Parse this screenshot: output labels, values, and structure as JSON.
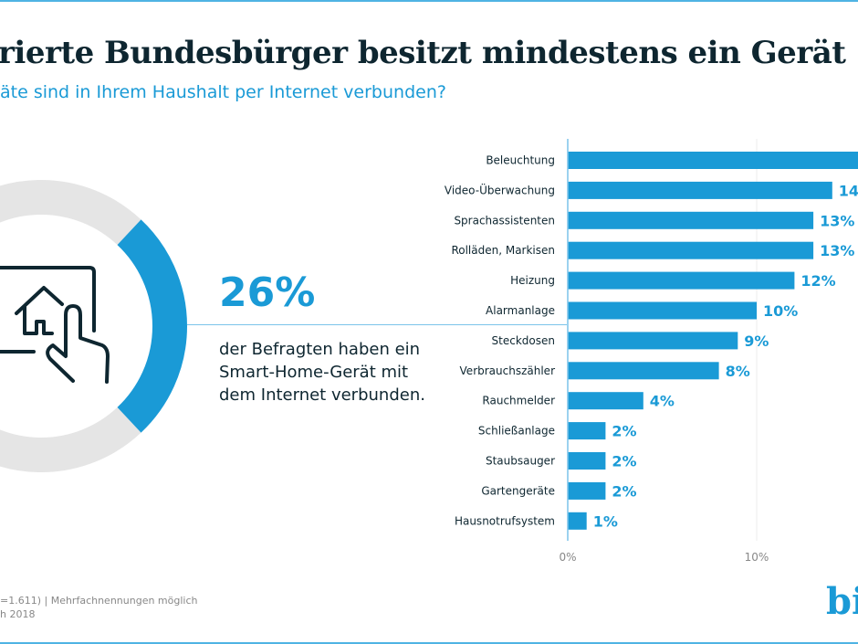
{
  "title": "rierte Bundesbürger besitzt mindestens ein Gerät",
  "subtitle": "äte sind in Ihrem Haushalt per Internet verbunden?",
  "highlight": {
    "value": "26%",
    "share": 26,
    "lines": [
      "der Befragten haben ein",
      "Smart-Home-Gerät mit",
      "dem Internet verbunden."
    ],
    "icon": "smart-home-touch-icon"
  },
  "footer": {
    "line1": "=1.611) | Mehrfachnennungen möglich",
    "line2": "h 2018"
  },
  "logo": "bi",
  "colors": {
    "accent": "#1a9ad6",
    "grey": "#e5e5e5",
    "text": "#0e2630"
  },
  "chart_data": {
    "type": "bar",
    "orientation": "horizontal",
    "categories": [
      "Beleuchtung",
      "Video-Überwachung",
      "Sprachassistenten",
      "Rolläden, Markisen",
      "Heizung",
      "Alarmanlage",
      "Steckdosen",
      "Verbrauchszähler",
      "Rauchmelder",
      "Schließanlage",
      "Staubsauger",
      "Gartengeräte",
      "Hausnotrufsystem"
    ],
    "values": [
      16,
      14,
      13,
      13,
      12,
      10,
      9,
      8,
      4,
      2,
      2,
      2,
      1
    ],
    "value_labels": [
      "",
      "14",
      "13%",
      "13%",
      "12%",
      "10%",
      "9%",
      "8%",
      "4%",
      "2%",
      "2%",
      "2%",
      "1%"
    ],
    "xticks": [
      "0%",
      "10%"
    ],
    "xlim": [
      0,
      20
    ]
  }
}
